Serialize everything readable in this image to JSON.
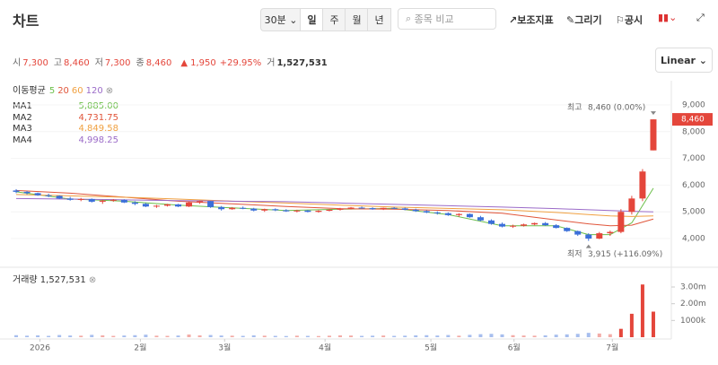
{
  "header": {
    "title": "차트",
    "interval": "30분",
    "tabs": [
      "일",
      "주",
      "월",
      "년"
    ],
    "active_tab": 0,
    "search_placeholder": "종목 비교",
    "tools": [
      "보조지표",
      "그리기",
      "공시"
    ],
    "scale": "Linear"
  },
  "quote": {
    "items": [
      {
        "label": "시",
        "value": {
          "value": 7300,
          "label": "7,300"
        }
      },
      {
        "label": "고",
        "value": {
          "value": 8460,
          "label": "8,460"
        }
      },
      {
        "label": "저",
        "value": {
          "value": 7300,
          "label": "7,300"
        }
      },
      {
        "label": "종",
        "value": {
          "value": 8460,
          "label": "8,460"
        }
      }
    ],
    "change": {
      "value": 1950,
      "label": "1,950"
    },
    "change_pct": {
      "value": 29.95,
      "label": "+29.95%"
    },
    "volume_label": "거",
    "volume": {
      "value": 1527531,
      "label": "1,527,531"
    }
  },
  "chart_data": {
    "type": "candlestick",
    "up_color": "#e4463b",
    "down_color": "#3b6fd9",
    "grid": true,
    "xlim": [
      -0.5,
      60
    ],
    "xticks": [
      {
        "value": 2.2,
        "label": "2026"
      },
      {
        "value": 11.5,
        "label": "2월"
      },
      {
        "value": 19.3,
        "label": "3월"
      },
      {
        "value": 28.6,
        "label": "4월"
      },
      {
        "value": 38.4,
        "label": "5월"
      },
      {
        "value": 46.1,
        "label": "6월"
      },
      {
        "value": 55.2,
        "label": "7월"
      }
    ],
    "ylim": [
      3130,
      9570
    ],
    "yticks": [
      {
        "value": 4000,
        "label": "4,000"
      },
      {
        "value": 5000,
        "label": "5,000"
      },
      {
        "value": 6000,
        "label": "6,000"
      },
      {
        "value": 7000,
        "label": "7,000"
      },
      {
        "value": 8000,
        "label": "8,000"
      },
      {
        "value": 9000,
        "label": "9,000"
      }
    ],
    "candles": [
      [
        5800,
        5850,
        5700,
        5750
      ],
      [
        5750,
        5780,
        5650,
        5700
      ],
      [
        5700,
        5720,
        5600,
        5620
      ],
      [
        5620,
        5680,
        5550,
        5600
      ],
      [
        5600,
        5620,
        5480,
        5500
      ],
      [
        5500,
        5560,
        5420,
        5450
      ],
      [
        5450,
        5520,
        5400,
        5480
      ],
      [
        5480,
        5500,
        5350,
        5380
      ],
      [
        5380,
        5450,
        5300,
        5420
      ],
      [
        5420,
        5480,
        5380,
        5450
      ],
      [
        5450,
        5470,
        5330,
        5350
      ],
      [
        5350,
        5400,
        5250,
        5300
      ],
      [
        5300,
        5330,
        5180,
        5200
      ],
      [
        5200,
        5260,
        5150,
        5230
      ],
      [
        5230,
        5300,
        5200,
        5280
      ],
      [
        5280,
        5300,
        5180,
        5200
      ],
      [
        5200,
        5380,
        5180,
        5350
      ],
      [
        5350,
        5420,
        5300,
        5400
      ],
      [
        5400,
        5410,
        5150,
        5180
      ],
      [
        5180,
        5220,
        5050,
        5100
      ],
      [
        5100,
        5180,
        5080,
        5150
      ],
      [
        5150,
        5200,
        5100,
        5120
      ],
      [
        5120,
        5150,
        5020,
        5050
      ],
      [
        5050,
        5120,
        5000,
        5100
      ],
      [
        5100,
        5130,
        5030,
        5060
      ],
      [
        5060,
        5100,
        5000,
        5020
      ],
      [
        5020,
        5080,
        4980,
        5050
      ],
      [
        5050,
        5070,
        4980,
        5000
      ],
      [
        5000,
        5060,
        4970,
        5040
      ],
      [
        5040,
        5100,
        5020,
        5080
      ],
      [
        5080,
        5150,
        5050,
        5120
      ],
      [
        5120,
        5180,
        5090,
        5160
      ],
      [
        5160,
        5200,
        5120,
        5140
      ],
      [
        5140,
        5170,
        5080,
        5100
      ],
      [
        5100,
        5160,
        5070,
        5150
      ],
      [
        5150,
        5180,
        5100,
        5130
      ],
      [
        5130,
        5160,
        5060,
        5080
      ],
      [
        5080,
        5120,
        5000,
        5030
      ],
      [
        5030,
        5060,
        4950,
        4980
      ],
      [
        4980,
        5020,
        4900,
        4950
      ],
      [
        4950,
        4980,
        4850,
        4880
      ],
      [
        4880,
        4950,
        4820,
        4920
      ],
      [
        4920,
        4940,
        4780,
        4800
      ],
      [
        4800,
        4850,
        4650,
        4680
      ],
      [
        4680,
        4720,
        4520,
        4550
      ],
      [
        4550,
        4600,
        4420,
        4450
      ],
      [
        4450,
        4520,
        4400,
        4480
      ],
      [
        4480,
        4560,
        4450,
        4530
      ],
      [
        4530,
        4600,
        4500,
        4580
      ],
      [
        4580,
        4620,
        4480,
        4500
      ],
      [
        4500,
        4540,
        4380,
        4400
      ],
      [
        4400,
        4420,
        4250,
        4280
      ],
      [
        4280,
        4300,
        4100,
        4150
      ],
      [
        4150,
        4200,
        3915,
        4000
      ],
      [
        4000,
        4250,
        3980,
        4200
      ],
      [
        4200,
        4300,
        4100,
        4250
      ],
      [
        4250,
        5100,
        4200,
        5000
      ],
      [
        5000,
        5600,
        4900,
        5500
      ],
      [
        5500,
        6600,
        5400,
        6510
      ],
      [
        7300,
        8460,
        7300,
        8460
      ]
    ],
    "high": {
      "label": "최고",
      "index": 59,
      "value": {
        "value": 8460,
        "label": "8,460 (0.00%)"
      }
    },
    "low": {
      "label": "최저",
      "index": 53,
      "value": {
        "value": 3915,
        "label": "3,915 (+116.09%)"
      }
    },
    "last": {
      "value": 8460,
      "label": "8,460"
    },
    "ma": {
      "title": "이동평균",
      "series": [
        {
          "name": "MA1",
          "period": 5,
          "color": "#6cbf4a",
          "x": [
            0,
            5,
            10,
            15,
            20,
            25,
            30,
            35,
            40,
            45,
            50,
            53,
            55,
            57,
            59
          ],
          "values": [
            5750,
            5480,
            5400,
            5250,
            5150,
            5050,
            5100,
            5130,
            4900,
            4480,
            4480,
            4150,
            4150,
            4590,
            5885
          ],
          "current": {
            "value": 5885,
            "label": "5,885.00"
          }
        },
        {
          "name": "MA2",
          "period": 20,
          "color": "#e0553a",
          "x": [
            0,
            5,
            10,
            15,
            20,
            25,
            30,
            35,
            40,
            45,
            50,
            53,
            55,
            57,
            59
          ],
          "values": [
            5800,
            5700,
            5550,
            5400,
            5300,
            5200,
            5120,
            5100,
            5050,
            4950,
            4700,
            4550,
            4480,
            4500,
            4731.75
          ],
          "current": {
            "value": 4731.75,
            "label": "4,731.75"
          }
        },
        {
          "name": "MA3",
          "period": 60,
          "color": "#f0a040",
          "x": [
            0,
            5,
            10,
            15,
            20,
            25,
            30,
            35,
            40,
            45,
            50,
            53,
            55,
            57,
            59
          ],
          "values": [
            5650,
            5600,
            5550,
            5480,
            5400,
            5330,
            5250,
            5180,
            5130,
            5080,
            4980,
            4900,
            4850,
            4830,
            4849.58
          ],
          "current": {
            "value": 4849.58,
            "label": "4,849.58"
          }
        },
        {
          "name": "MA4",
          "period": 120,
          "color": "#9b6bc8",
          "x": [
            0,
            5,
            10,
            15,
            20,
            25,
            30,
            35,
            40,
            45,
            50,
            53,
            55,
            57,
            59
          ],
          "values": [
            5500,
            5480,
            5450,
            5420,
            5400,
            5380,
            5330,
            5280,
            5230,
            5180,
            5120,
            5080,
            5050,
            5020,
            4998.25
          ],
          "current": {
            "value": 4998.25,
            "label": "4,998.25"
          }
        }
      ]
    },
    "volume": {
      "title": "거래량",
      "current": {
        "value": 1527531,
        "label": "1,527,531"
      },
      "ylim": [
        0,
        3430000
      ],
      "yticks": [
        {
          "value": 1000000,
          "label": "1000k"
        },
        {
          "value": 2000000,
          "label": "2.00m"
        },
        {
          "value": 3000000,
          "label": "3.00m"
        }
      ],
      "values": [
        120000,
        90000,
        110000,
        80000,
        130000,
        100000,
        90000,
        140000,
        110000,
        80000,
        100000,
        120000,
        150000,
        90000,
        80000,
        100000,
        160000,
        110000,
        130000,
        100000,
        90000,
        80000,
        110000,
        90000,
        80000,
        70000,
        90000,
        80000,
        70000,
        90000,
        110000,
        100000,
        80000,
        90000,
        100000,
        80000,
        90000,
        110000,
        120000,
        100000,
        130000,
        90000,
        140000,
        180000,
        200000,
        170000,
        120000,
        100000,
        90000,
        110000,
        150000,
        170000,
        200000,
        260000,
        220000,
        180000,
        500000,
        1400000,
        3150000,
        1527531
      ]
    }
  }
}
